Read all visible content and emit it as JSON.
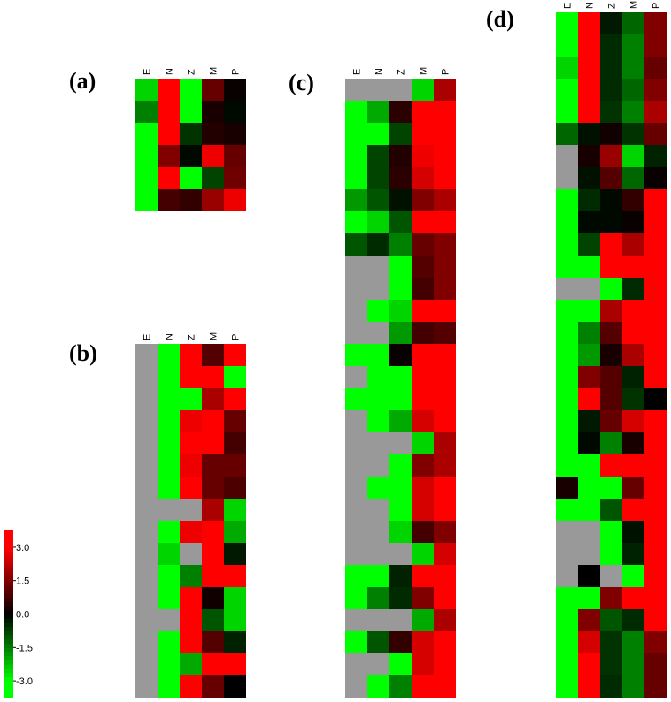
{
  "chart_data": [
    {
      "type": "heatmap",
      "title": "(a)",
      "columns": [
        "E",
        "N",
        "Z",
        "M",
        "P"
      ],
      "values": [
        [
          -2.5,
          3,
          -3,
          1.2,
          0.1
        ],
        [
          -1.5,
          3,
          -3,
          0.3,
          -0.1
        ],
        [
          -3,
          3,
          -0.6,
          0.4,
          0.3
        ],
        [
          -3,
          1.5,
          -0.1,
          2.8,
          1.2
        ],
        [
          -3,
          3,
          -3,
          -0.8,
          1.3
        ],
        [
          -3,
          0.8,
          0.6,
          1.8,
          2.8
        ]
      ]
    },
    {
      "type": "heatmap",
      "title": "(b)",
      "columns": [
        "E",
        "N",
        "Z",
        "M",
        "P"
      ],
      "values": [
        [
          null,
          -3,
          3,
          1.0,
          3
        ],
        [
          null,
          -3,
          3,
          3,
          -3
        ],
        [
          null,
          -3,
          -3,
          2,
          3
        ],
        [
          null,
          -3,
          2.8,
          3,
          1.2
        ],
        [
          null,
          -3,
          3,
          3,
          0.8
        ],
        [
          null,
          -3,
          2.8,
          1.2,
          1.2
        ],
        [
          null,
          -3,
          3,
          1.2,
          0.9
        ],
        [
          null,
          null,
          null,
          2,
          -2.5
        ],
        [
          null,
          -3,
          2.8,
          3,
          -2
        ],
        [
          null,
          -2.5,
          null,
          3,
          -0.3
        ],
        [
          null,
          -3,
          -1.5,
          3,
          3
        ],
        [
          null,
          -3,
          3,
          0.2,
          -2.5
        ],
        [
          null,
          null,
          3,
          -1,
          -2.5
        ],
        [
          null,
          -3,
          3,
          1.0,
          -0.4
        ],
        [
          null,
          -3,
          -2,
          3,
          3
        ],
        [
          null,
          -3,
          3,
          1.2,
          0
        ]
      ]
    },
    {
      "type": "heatmap",
      "title": "(c)",
      "columns": [
        "E",
        "N",
        "Z",
        "M",
        "P"
      ],
      "values": [
        [
          null,
          null,
          null,
          -2.5,
          2
        ],
        [
          -3,
          -2,
          0.5,
          3,
          3
        ],
        [
          -3,
          -3,
          -0.8,
          3,
          3
        ],
        [
          -3,
          -0.8,
          0.4,
          2.8,
          3
        ],
        [
          -3,
          -0.8,
          0.5,
          2.5,
          3
        ],
        [
          -1.8,
          -1,
          -0.2,
          1.5,
          2
        ],
        [
          -3,
          -2.5,
          -1,
          3,
          3
        ],
        [
          -1,
          -0.5,
          -1.5,
          1.2,
          1.5
        ],
        [
          null,
          null,
          -3,
          1.0,
          1.5
        ],
        [
          null,
          null,
          -3,
          0.8,
          1.5
        ],
        [
          null,
          -3,
          -2.5,
          3,
          3
        ],
        [
          null,
          null,
          -1.8,
          0.8,
          1.0
        ],
        [
          -3,
          -3,
          0.1,
          3,
          3
        ],
        [
          null,
          -3,
          -3,
          3,
          3
        ],
        [
          -3,
          -3,
          -3,
          3,
          3
        ],
        [
          null,
          -3,
          -2,
          2.5,
          3
        ],
        [
          null,
          null,
          null,
          -2.5,
          2
        ],
        [
          null,
          null,
          -3,
          1.5,
          2
        ],
        [
          null,
          -3,
          -3,
          2.5,
          3
        ],
        [
          null,
          null,
          -3,
          2.5,
          3
        ],
        [
          null,
          null,
          -2.5,
          0.8,
          1.5
        ],
        [
          null,
          null,
          null,
          -2.5,
          2.5
        ],
        [
          -3,
          -3,
          -0.4,
          3,
          3
        ],
        [
          -3,
          -1.5,
          -0.5,
          1.5,
          3
        ],
        [
          null,
          null,
          null,
          -2,
          2
        ],
        [
          -3,
          -1,
          0.6,
          2.5,
          3
        ],
        [
          null,
          null,
          -3,
          2.5,
          3
        ],
        [
          null,
          -3,
          -1.5,
          3,
          3
        ]
      ]
    },
    {
      "type": "heatmap",
      "title": "(d)",
      "columns": [
        "E",
        "N",
        "Z",
        "M",
        "P"
      ],
      "values": [
        [
          -3,
          3,
          -0.3,
          -1.2,
          1.5
        ],
        [
          -3,
          3,
          -0.5,
          -1.5,
          1.5
        ],
        [
          -2.5,
          3,
          -0.5,
          -1.5,
          1.2
        ],
        [
          -3,
          3,
          -0.5,
          -1.2,
          1.5
        ],
        [
          -3,
          3,
          -0.6,
          -1.5,
          2
        ],
        [
          -1.2,
          -0.2,
          0.2,
          -0.6,
          1.2
        ],
        [
          null,
          0.3,
          1.8,
          -2.5,
          -0.4
        ],
        [
          null,
          -0.2,
          1,
          -1.2,
          0.1
        ],
        [
          -3,
          -0.5,
          -0.1,
          0.6,
          3
        ],
        [
          -3,
          -0.1,
          -0.1,
          0.1,
          3
        ],
        [
          -3,
          -0.8,
          3,
          2,
          3
        ],
        [
          -3,
          -3,
          3,
          3,
          3
        ],
        [
          null,
          null,
          -3,
          -0.5,
          3
        ],
        [
          -3,
          -3,
          2,
          3,
          3
        ],
        [
          -3,
          -1.5,
          1,
          3,
          3
        ],
        [
          -3,
          -1.8,
          0.3,
          2,
          3
        ],
        [
          -3,
          1.5,
          1,
          -0.4,
          3
        ],
        [
          -3,
          3,
          1,
          -0.6,
          0
        ],
        [
          -3,
          -0.3,
          1.2,
          2.5,
          3
        ],
        [
          -3,
          -0.1,
          -1.5,
          0.3,
          3
        ],
        [
          -3,
          -3,
          3,
          3,
          3
        ],
        [
          0.3,
          -3,
          -3,
          1.2,
          3
        ],
        [
          -3,
          -3,
          -1,
          3,
          3
        ],
        [
          null,
          null,
          -3,
          -0.2,
          3
        ],
        [
          null,
          null,
          -3,
          -0.4,
          3
        ],
        [
          null,
          0,
          null,
          -3,
          3
        ],
        [
          -3,
          -3,
          1.5,
          3,
          3
        ],
        [
          -3,
          1.5,
          -1,
          -0.5,
          3
        ],
        [
          -3,
          2.5,
          -0.6,
          -1.5,
          1.5
        ],
        [
          -3,
          3,
          -0.6,
          -1.5,
          1.2
        ],
        [
          -3,
          3,
          -0.5,
          -1.5,
          1.2
        ]
      ]
    },
    {
      "type": "colorbar",
      "zlim": [
        -3.75,
        3.75
      ],
      "zticks": [
        {
          "value": 3,
          "label": "3.0"
        },
        {
          "value": 1.5,
          "label": "1.5"
        },
        {
          "value": 0,
          "label": "0.0"
        },
        {
          "value": -1.5,
          "label": "-1.5"
        },
        {
          "value": -3,
          "label": "-3.0"
        }
      ]
    }
  ]
}
